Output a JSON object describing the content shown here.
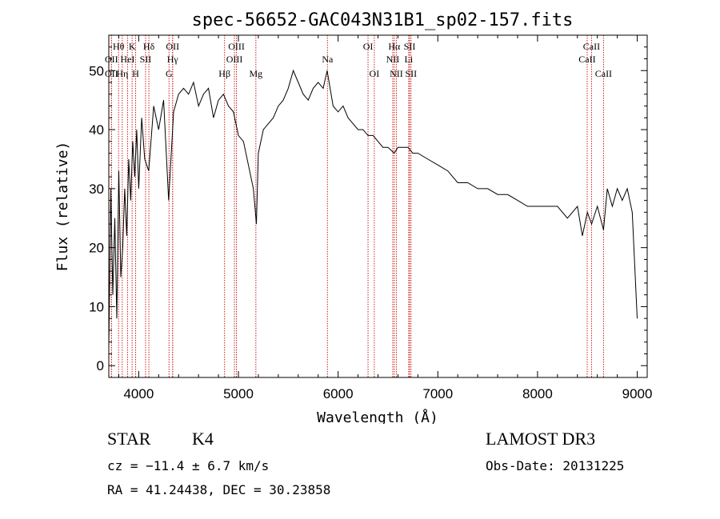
{
  "chart_data": {
    "type": "line",
    "title": "spec-56652-GAC043N31B1_sp02-157.fits",
    "xlabel": "Wavelength (Å)",
    "ylabel": "Flux (relative)",
    "xlim": [
      3700,
      9100
    ],
    "ylim": [
      -2,
      56
    ],
    "xticks": [
      4000,
      5000,
      6000,
      7000,
      8000,
      9000
    ],
    "yticks": [
      0,
      10,
      20,
      30,
      40,
      50
    ],
    "grid": false,
    "line_color": "#000000",
    "marker_color": "#cc2222",
    "spectrum": {
      "x": [
        3700,
        3720,
        3740,
        3760,
        3780,
        3800,
        3820,
        3840,
        3860,
        3880,
        3900,
        3920,
        3940,
        3960,
        3980,
        4000,
        4030,
        4060,
        4100,
        4150,
        4200,
        4250,
        4300,
        4350,
        4400,
        4450,
        4500,
        4550,
        4600,
        4650,
        4700,
        4750,
        4800,
        4850,
        4900,
        4950,
        5000,
        5050,
        5100,
        5150,
        5180,
        5200,
        5250,
        5300,
        5350,
        5400,
        5450,
        5500,
        5550,
        5600,
        5650,
        5700,
        5750,
        5800,
        5850,
        5890,
        5950,
        6000,
        6050,
        6100,
        6150,
        6200,
        6250,
        6300,
        6350,
        6400,
        6450,
        6500,
        6563,
        6600,
        6650,
        6700,
        6750,
        6800,
        6900,
        7000,
        7100,
        7200,
        7300,
        7400,
        7500,
        7600,
        7700,
        7800,
        7900,
        8000,
        8100,
        8200,
        8300,
        8400,
        8450,
        8500,
        8542,
        8600,
        8662,
        8700,
        8750,
        8800,
        8850,
        8900,
        8950,
        9000
      ],
      "y": [
        3,
        30,
        12,
        25,
        8,
        33,
        15,
        20,
        30,
        22,
        35,
        28,
        38,
        32,
        40,
        30,
        42,
        35,
        33,
        44,
        40,
        45,
        28,
        43,
        46,
        47,
        46,
        48,
        44,
        46,
        47,
        42,
        45,
        46,
        44,
        43,
        39,
        38,
        34,
        30,
        24,
        36,
        40,
        41,
        42,
        44,
        45,
        47,
        50,
        48,
        46,
        45,
        47,
        48,
        47,
        50,
        44,
        43,
        44,
        42,
        41,
        40,
        40,
        39,
        39,
        38,
        37,
        37,
        36,
        37,
        37,
        37,
        36,
        36,
        35,
        34,
        33,
        31,
        31,
        30,
        30,
        29,
        29,
        28,
        27,
        27,
        27,
        27,
        25,
        27,
        22,
        26,
        24,
        27,
        23,
        30,
        27,
        30,
        28,
        30,
        26,
        8
      ]
    },
    "lines": [
      {
        "label": "Hθ",
        "x": 3798
      },
      {
        "label": "K",
        "x": 3934
      },
      {
        "label": "Hδ",
        "x": 4102
      },
      {
        "label": "OII",
        "x": 4340
      },
      {
        "label": "OIII",
        "x": 4980
      },
      {
        "label": "OI",
        "x": 6300
      },
      {
        "label": "Hα",
        "x": 6563
      },
      {
        "label": "SII",
        "x": 6717
      },
      {
        "label": "CaII",
        "x": 8542
      },
      {
        "label": "OII",
        "x": 3727
      },
      {
        "label": "HeI",
        "x": 3888
      },
      {
        "label": "SII",
        "x": 4069
      },
      {
        "label": "Hγ",
        "x": 4340
      },
      {
        "label": "OIII",
        "x": 4960
      },
      {
        "label": "Na",
        "x": 5893
      },
      {
        "label": "NII",
        "x": 6548
      },
      {
        "label": "Li",
        "x": 6708
      },
      {
        "label": "CaII",
        "x": 8498
      },
      {
        "label": "OII",
        "x": 3727
      },
      {
        "label": "Hη",
        "x": 3835
      },
      {
        "label": "H",
        "x": 3969
      },
      {
        "label": "G",
        "x": 4304
      },
      {
        "label": "Hβ",
        "x": 4861
      },
      {
        "label": "Mg",
        "x": 5175
      },
      {
        "label": "OI",
        "x": 6363
      },
      {
        "label": "NII",
        "x": 6584
      },
      {
        "label": "SII",
        "x": 6731
      },
      {
        "label": "CaII",
        "x": 8662
      }
    ],
    "line_label_rows": [
      0,
      0,
      0,
      0,
      0,
      0,
      0,
      0,
      0,
      1,
      1,
      1,
      1,
      1,
      1,
      1,
      1,
      1,
      2,
      2,
      2,
      2,
      2,
      2,
      2,
      2,
      2,
      2
    ]
  },
  "info": {
    "class": "STAR",
    "subclass": "K4",
    "survey": "LAMOST DR3",
    "cz": "cz = −11.4 ± 6.7 km/s",
    "obs_date": "Obs-Date: 20131225",
    "radec": "RA =  41.24438, DEC =  30.23858"
  }
}
